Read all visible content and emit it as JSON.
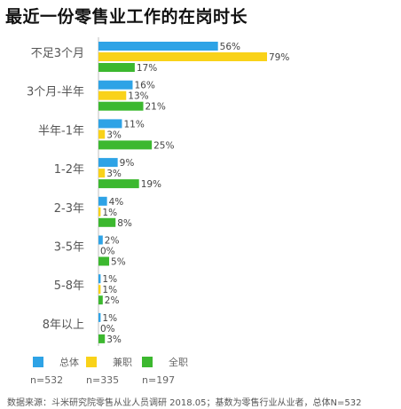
{
  "chart_data": {
    "type": "bar",
    "orientation": "horizontal",
    "title": "最近一份零售业工作的在岗时长",
    "categories": [
      "不足3个月",
      "3个月-半年",
      "半年-1年",
      "1-2年",
      "2-3年",
      "3-5年",
      "5-8年",
      "8年以上"
    ],
    "series": [
      {
        "name": "总体",
        "color": "#2ea3e6",
        "n": "n=532",
        "values": [
          56,
          16,
          11,
          9,
          4,
          2,
          1,
          1
        ],
        "labels": [
          "56%",
          "16%",
          "11%",
          "9%",
          "4%",
          "2%",
          "1%",
          "1%"
        ]
      },
      {
        "name": "兼职",
        "color": "#f9d219",
        "n": "n=335",
        "values": [
          79,
          13,
          3,
          3,
          1,
          0,
          1,
          0
        ],
        "labels": [
          "79%",
          "13%",
          "3%",
          "3%",
          "1%",
          "0%",
          "1%",
          "0%"
        ]
      },
      {
        "name": "全职",
        "color": "#3cb82f",
        "n": "n=197",
        "values": [
          17,
          21,
          25,
          19,
          8,
          5,
          2,
          3
        ],
        "labels": [
          "17%",
          "21%",
          "25%",
          "19%",
          "8%",
          "5%",
          "2%",
          "3%"
        ]
      }
    ],
    "xlim": [
      0,
      100
    ],
    "grid": false,
    "legend": "bottom-left"
  },
  "source": "数据来源：斗米研究院零售从业人员调研 2018.05；基数为零售行业从业者，总体N=532"
}
